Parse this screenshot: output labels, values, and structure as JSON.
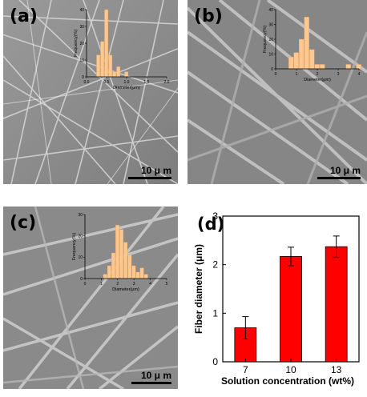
{
  "panels": [
    {
      "label": "(a)",
      "scale_label": "10 μ m",
      "inset": {
        "xlabel": "Diameter(μm)",
        "ylabel": "Frequency(%)",
        "x_ticks": [
          "0.0",
          "0.5",
          "1.0",
          "1.5",
          "2.0"
        ],
        "y_ticks": [
          "0",
          "10",
          "20",
          "30",
          "40"
        ],
        "xlim": [
          0,
          2
        ],
        "ylim": [
          0,
          40
        ],
        "bins": [
          0.3,
          0.4,
          0.5,
          0.6,
          0.7,
          0.8,
          0.9,
          1.0,
          1.1,
          1.2,
          1.3
        ],
        "values": [
          13,
          21,
          40,
          13,
          3,
          6,
          0,
          3,
          0,
          0,
          0
        ]
      }
    },
    {
      "label": "(b)",
      "scale_label": "10 μ m",
      "inset": {
        "xlabel": "Diameter(μm)",
        "ylabel": "Frequency(%)",
        "x_ticks": [
          "0",
          "1",
          "2",
          "3",
          "4"
        ],
        "y_ticks": [
          "0",
          "10",
          "20",
          "30",
          "40"
        ],
        "xlim": [
          0,
          4
        ],
        "ylim": [
          0,
          40
        ],
        "bins": [
          0.75,
          1.0,
          1.25,
          1.5,
          1.75,
          2.0,
          2.25,
          2.5,
          2.75,
          3.0,
          3.25,
          3.5,
          3.75,
          4.0
        ],
        "values": [
          8,
          11,
          20,
          35,
          13,
          3,
          3,
          0,
          0,
          0,
          0,
          3,
          0,
          3
        ]
      }
    },
    {
      "label": "(c)",
      "scale_label": "10 μ m",
      "inset": {
        "xlabel": "Diameter(μm)",
        "ylabel": "Frequency(%)",
        "x_ticks": [
          "0",
          "1",
          "2",
          "3",
          "4",
          "5"
        ],
        "y_ticks": [
          "0",
          "10",
          "20",
          "30"
        ],
        "xlim": [
          0,
          5
        ],
        "ylim": [
          0,
          30
        ],
        "bins": [
          1.25,
          1.5,
          1.75,
          2.0,
          2.25,
          2.5,
          2.75,
          3.0,
          3.25,
          3.5,
          3.75
        ],
        "values": [
          2,
          6,
          12,
          25,
          23,
          17,
          11,
          6,
          3,
          5,
          2
        ]
      }
    }
  ],
  "colors": {
    "bar_inset": "#fdc88f",
    "bar_main": "#ff0000",
    "sem_bg": "#8f8f8f"
  },
  "chart_data": {
    "type": "bar",
    "label": "(d)",
    "categories": [
      "7",
      "10",
      "13"
    ],
    "values": [
      0.7,
      2.17,
      2.37
    ],
    "errors": [
      0.23,
      0.19,
      0.22
    ],
    "ylabel": "Fiber diameter (μm)",
    "xlabel": "Solution concentration (wt%)",
    "ylim": [
      0,
      3
    ],
    "y_ticks": [
      "0",
      "1",
      "2",
      "3"
    ],
    "grid": false
  }
}
